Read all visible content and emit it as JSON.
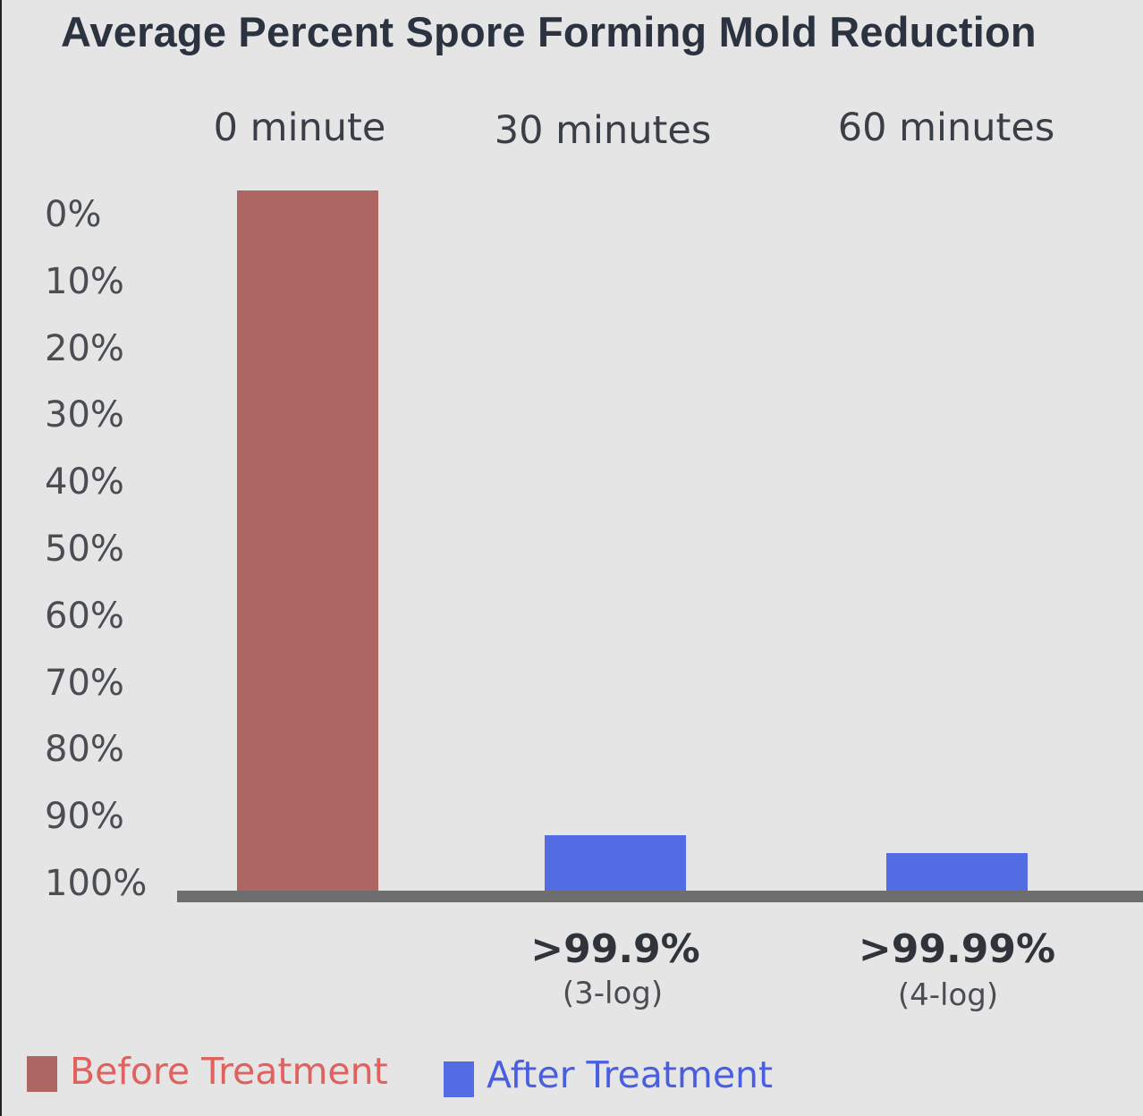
{
  "chart_data": {
    "type": "bar",
    "title": "Average Percent Spore Forming Mold Reduction",
    "categories": [
      "0 minute",
      "30 minutes",
      "60 minutes"
    ],
    "yticks": [
      "0%",
      "10%",
      "20%",
      "30%",
      "40%",
      "50%",
      "60%",
      "70%",
      "80%",
      "90%",
      "100%"
    ],
    "ylim": [
      0,
      100
    ],
    "y_inverted": true,
    "series": [
      {
        "name": "Before Treatment",
        "color": "#ae6663",
        "values": [
          100,
          null,
          null
        ]
      },
      {
        "name": "After Treatment",
        "color": "#546ce3",
        "values": [
          null,
          8,
          5.5
        ]
      }
    ],
    "annotations": [
      {
        "category": "30 minutes",
        "main": ">99.9%",
        "sub": "(3-log)"
      },
      {
        "category": "60 minutes",
        "main": ">99.99%",
        "sub": "(4-log)"
      }
    ],
    "legend": {
      "position": "bottom-left",
      "items": [
        {
          "label": "Before Treatment",
          "color": "#ae6663",
          "text_color": "#e0615d"
        },
        {
          "label": "After Treatment",
          "color": "#546ce3",
          "text_color": "#4a5fe0"
        }
      ]
    },
    "grid": false
  }
}
